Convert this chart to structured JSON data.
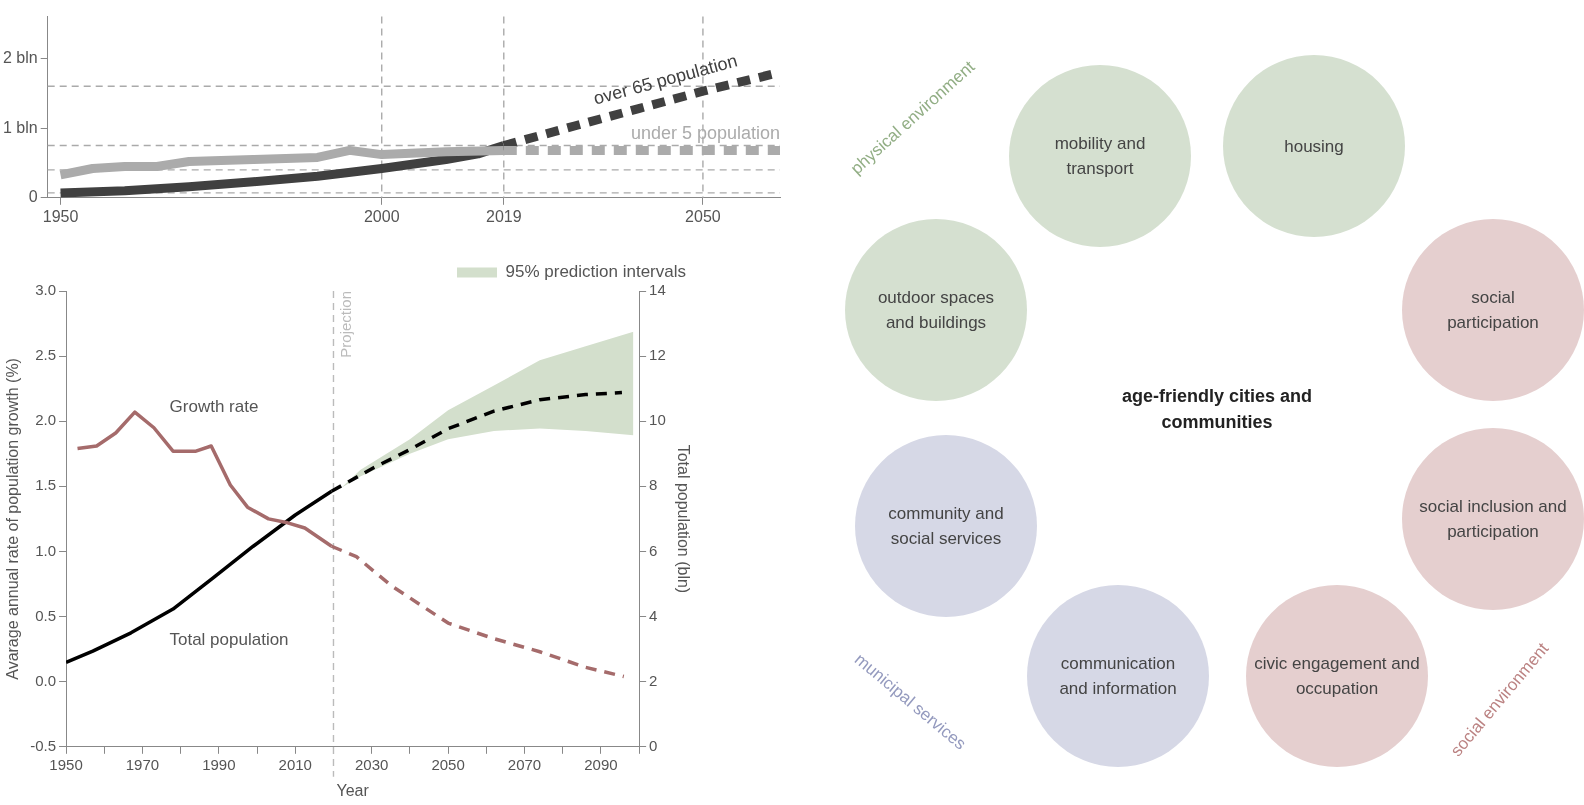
{
  "chart_data": [
    {
      "type": "line",
      "xlim": [
        1948,
        2062
      ],
      "ylim": [
        0,
        2.6
      ],
      "xticks": [
        1950,
        2000,
        2019,
        2050
      ],
      "yticks": [
        0,
        {
          "value": 1,
          "label": "1 bln"
        },
        {
          "value": 2,
          "label": "2 bln"
        }
      ],
      "grid": false,
      "series": [
        {
          "color": "#ababab",
          "x": [
            1950,
            1955,
            1960,
            1965,
            1970,
            1980,
            1990,
            1995,
            2000,
            2010,
            2019
          ],
          "values": [
            0.33,
            0.42,
            0.45,
            0.45,
            0.52,
            0.55,
            0.58,
            0.68,
            0.62,
            0.66,
            0.68
          ]
        },
        {
          "name": "under 5 population",
          "color": "#ababab",
          "line_style": "dashed",
          "x": [
            2019,
            2062
          ],
          "values": [
            0.68,
            0.68
          ]
        },
        {
          "color": "#404040",
          "x": [
            1950,
            1960,
            1970,
            1980,
            1990,
            2000,
            2010,
            2015,
            2019
          ],
          "values": [
            0.07,
            0.1,
            0.16,
            0.23,
            0.31,
            0.42,
            0.55,
            0.63,
            0.75
          ]
        },
        {
          "name": "over 65 population",
          "color": "#404040",
          "line_style": "dashed",
          "x": [
            2019,
            2030,
            2040,
            2050,
            2062
          ],
          "values": [
            0.75,
            1.03,
            1.28,
            1.53,
            1.8
          ]
        }
      ],
      "ref_lines": [
        {
          "axis": "y",
          "value": 1.6,
          "color": "#aaaaaa",
          "line_style": "dashed"
        },
        {
          "axis": "y",
          "value": 0.75,
          "color": "#aaaaaa",
          "line_style": "dashed"
        },
        {
          "axis": "y",
          "value": 0.4,
          "color": "#aaaaaa",
          "line_style": "dashed"
        },
        {
          "axis": "y",
          "value": 0.07,
          "color": "#aaaaaa",
          "line_style": "dashed"
        },
        {
          "axis": "x",
          "value": 2000,
          "color": "#aaaaaa",
          "line_style": "dashed"
        },
        {
          "axis": "x",
          "value": 2019,
          "color": "#aaaaaa",
          "line_style": "dashed"
        },
        {
          "axis": "x",
          "value": 2050,
          "color": "#aaaaaa",
          "line_style": "dashed"
        }
      ]
    },
    {
      "type": "line",
      "xlabel": "Year",
      "ylabel": "Avarage annual rate of population growth (%)",
      "y2label": "Total population (bln)",
      "xlim": [
        1950,
        2100
      ],
      "ylim": [
        -0.5,
        3
      ],
      "y2lim": [
        0,
        14
      ],
      "xticks": [
        1950,
        {
          "value": 1960,
          "label": null
        },
        1970,
        {
          "value": 1980,
          "label": null
        },
        1990,
        {
          "value": 2000,
          "label": null
        },
        2010,
        {
          "value": 2020,
          "label": null
        },
        2030,
        {
          "value": 2040,
          "label": null
        },
        2050,
        {
          "value": 2060,
          "label": null
        },
        2070,
        {
          "value": 2080,
          "label": null
        },
        2090,
        {
          "value": 2100,
          "label": null
        }
      ],
      "yticks": [
        -0.5,
        {
          "value": 0,
          "label": "0.0"
        },
        0.5,
        {
          "value": 1,
          "label": "1.0"
        },
        1.5,
        {
          "value": 2,
          "label": "2.0"
        },
        2.5,
        {
          "value": 3,
          "label": "3.0"
        }
      ],
      "y2ticks": [
        0,
        2,
        4,
        6,
        8,
        10,
        12,
        14
      ],
      "grid": false,
      "legend": "top right",
      "series": [
        {
          "name": "Growth rate",
          "color": "#a56b6b",
          "x": [
            1953,
            1958,
            1963,
            1968,
            1973,
            1978,
            1984,
            1988,
            1993,
            1997.5,
            2003,
            2008,
            2012.5,
            2019.5
          ],
          "values": [
            1.79,
            1.81,
            1.91,
            2.07,
            1.95,
            1.77,
            1.77,
            1.81,
            1.51,
            1.34,
            1.25,
            1.22,
            1.18,
            1.04
          ]
        },
        {
          "color": "#a56b6b",
          "line_style": "dashed",
          "x": [
            2019.5,
            2026,
            2035,
            2050,
            2062,
            2074,
            2086,
            2096
          ],
          "values": [
            1.04,
            0.96,
            0.74,
            0.45,
            0.33,
            0.23,
            0.11,
            0.04
          ]
        },
        {
          "name": "95% prediction intervals",
          "color": "#d3dfcc",
          "axis": "y2",
          "x": [
            2022,
            2027,
            2040,
            2050,
            2062,
            2074,
            2086,
            2098.5
          ],
          "values": [
            null,
            null,
            null,
            null,
            null,
            null,
            null,
            null
          ],
          "lower": [
            7.95,
            8.3,
            9.0,
            9.45,
            9.7,
            9.78,
            9.7,
            9.57
          ],
          "upper": [
            7.95,
            8.5,
            9.45,
            10.34,
            11.1,
            11.87,
            12.3,
            12.75
          ]
        },
        {
          "name": "Total population",
          "color": "#000000",
          "axis": "y2",
          "x": [
            1950,
            1957,
            1967,
            1978,
            1988.5,
            1999,
            2010,
            2019.5
          ],
          "values": [
            2.59,
            2.94,
            3.5,
            4.23,
            5.19,
            6.16,
            7.12,
            7.85
          ]
        },
        {
          "color": "#000000",
          "axis": "y2",
          "line_style": "dashed",
          "x": [
            2019.5,
            2030.5,
            2040,
            2050,
            2062,
            2074,
            2086,
            2095.5
          ],
          "values": [
            7.85,
            8.57,
            9.13,
            9.77,
            10.31,
            10.66,
            10.82,
            10.88
          ]
        }
      ],
      "ref_lines": [
        {
          "axis": "x",
          "value": 2020,
          "label": "Projection",
          "color": "#bbbbbb",
          "line_style": "dashed"
        }
      ]
    },
    {
      "type": "other",
      "title": "age-friendly cities and communities",
      "categories": [
        "outdoor spaces and buildings",
        "mobility and transport",
        "housing",
        "social participation",
        "social inclusion and participation",
        "civic engagement and occupation",
        "communication and information",
        "community and social services"
      ],
      "colors": [
        "#d5e0d0",
        "#d5e0d0",
        "#d5e0d0",
        "#e5cfcf",
        "#e5cfcf",
        "#e5cfcf",
        "#d6d8e6",
        "#d6d8e6"
      ],
      "annotations": [
        "physical environment",
        "social environment",
        "municipal services"
      ]
    }
  ]
}
